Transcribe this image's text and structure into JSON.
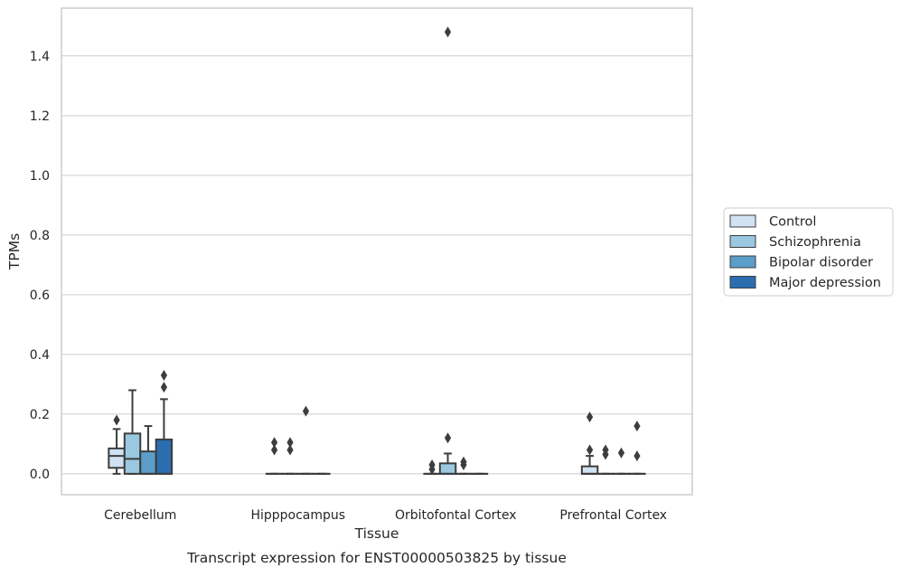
{
  "chart_data": {
    "type": "box",
    "caption": "Transcript expression for ENST00000503825 by tissue",
    "xlabel": "Tissue",
    "ylabel": "TPMs",
    "ylim": [
      -0.07,
      1.56
    ],
    "yticks": [
      0.0,
      0.2,
      0.4,
      0.6,
      0.8,
      1.0,
      1.2,
      1.4
    ],
    "ytick_labels": [
      "0.0",
      "0.2",
      "0.4",
      "0.6",
      "0.8",
      "1.0",
      "1.2",
      "1.4"
    ],
    "grid": true,
    "legend_position": "right",
    "categories": [
      "Cerebellum",
      "Hipppocampus",
      "Orbitofontal Cortex",
      "Prefrontal Cortex"
    ],
    "series": [
      {
        "name": "Control",
        "color": "#d1e2f2",
        "boxes": [
          {
            "q1": 0.02,
            "median": 0.06,
            "q3": 0.085,
            "whislo": 0.0,
            "whishi": 0.15,
            "fliers": [
              0.18
            ]
          },
          {
            "q1": 0.0,
            "median": 0.0,
            "q3": 0.0,
            "whislo": 0.0,
            "whishi": 0.0,
            "fliers": [
              0.08,
              0.105
            ]
          },
          {
            "q1": 0.0,
            "median": 0.0,
            "q3": 0.0,
            "whislo": 0.0,
            "whishi": 0.0,
            "fliers": [
              0.015,
              0.03
            ]
          },
          {
            "q1": 0.0,
            "median": 0.0,
            "q3": 0.025,
            "whislo": 0.0,
            "whishi": 0.06,
            "fliers": [
              0.08,
              0.19
            ]
          }
        ]
      },
      {
        "name": "Schizophrenia",
        "color": "#9ac8e0",
        "boxes": [
          {
            "q1": 0.0,
            "median": 0.05,
            "q3": 0.135,
            "whislo": 0.0,
            "whishi": 0.28,
            "fliers": []
          },
          {
            "q1": 0.0,
            "median": 0.0,
            "q3": 0.0,
            "whislo": 0.0,
            "whishi": 0.0,
            "fliers": [
              0.08,
              0.105
            ]
          },
          {
            "q1": 0.0,
            "median": 0.0,
            "q3": 0.035,
            "whislo": 0.0,
            "whishi": 0.068,
            "fliers": [
              0.12,
              1.48
            ]
          },
          {
            "q1": 0.0,
            "median": 0.0,
            "q3": 0.0,
            "whislo": 0.0,
            "whishi": 0.0,
            "fliers": [
              0.065,
              0.08
            ]
          }
        ]
      },
      {
        "name": "Bipolar disorder",
        "color": "#5a9ec9",
        "boxes": [
          {
            "q1": 0.0,
            "median": 0.0,
            "q3": 0.075,
            "whislo": 0.0,
            "whishi": 0.16,
            "fliers": []
          },
          {
            "q1": 0.0,
            "median": 0.0,
            "q3": 0.0,
            "whislo": 0.0,
            "whishi": 0.0,
            "fliers": [
              0.21
            ]
          },
          {
            "q1": 0.0,
            "median": 0.0,
            "q3": 0.0,
            "whislo": 0.0,
            "whishi": 0.0,
            "fliers": [
              0.03,
              0.04
            ]
          },
          {
            "q1": 0.0,
            "median": 0.0,
            "q3": 0.0,
            "whislo": 0.0,
            "whishi": 0.0,
            "fliers": [
              0.07
            ]
          }
        ]
      },
      {
        "name": "Major depression",
        "color": "#2a6eb0",
        "boxes": [
          {
            "q1": 0.0,
            "median": 0.0,
            "q3": 0.115,
            "whislo": 0.0,
            "whishi": 0.25,
            "fliers": [
              0.29,
              0.33
            ]
          },
          {
            "q1": 0.0,
            "median": 0.0,
            "q3": 0.0,
            "whislo": 0.0,
            "whishi": 0.0,
            "fliers": []
          },
          {
            "q1": 0.0,
            "median": 0.0,
            "q3": 0.0,
            "whislo": 0.0,
            "whishi": 0.0,
            "fliers": []
          },
          {
            "q1": 0.0,
            "median": 0.0,
            "q3": 0.0,
            "whislo": 0.0,
            "whishi": 0.0,
            "fliers": [
              0.06,
              0.16
            ]
          }
        ]
      }
    ]
  }
}
